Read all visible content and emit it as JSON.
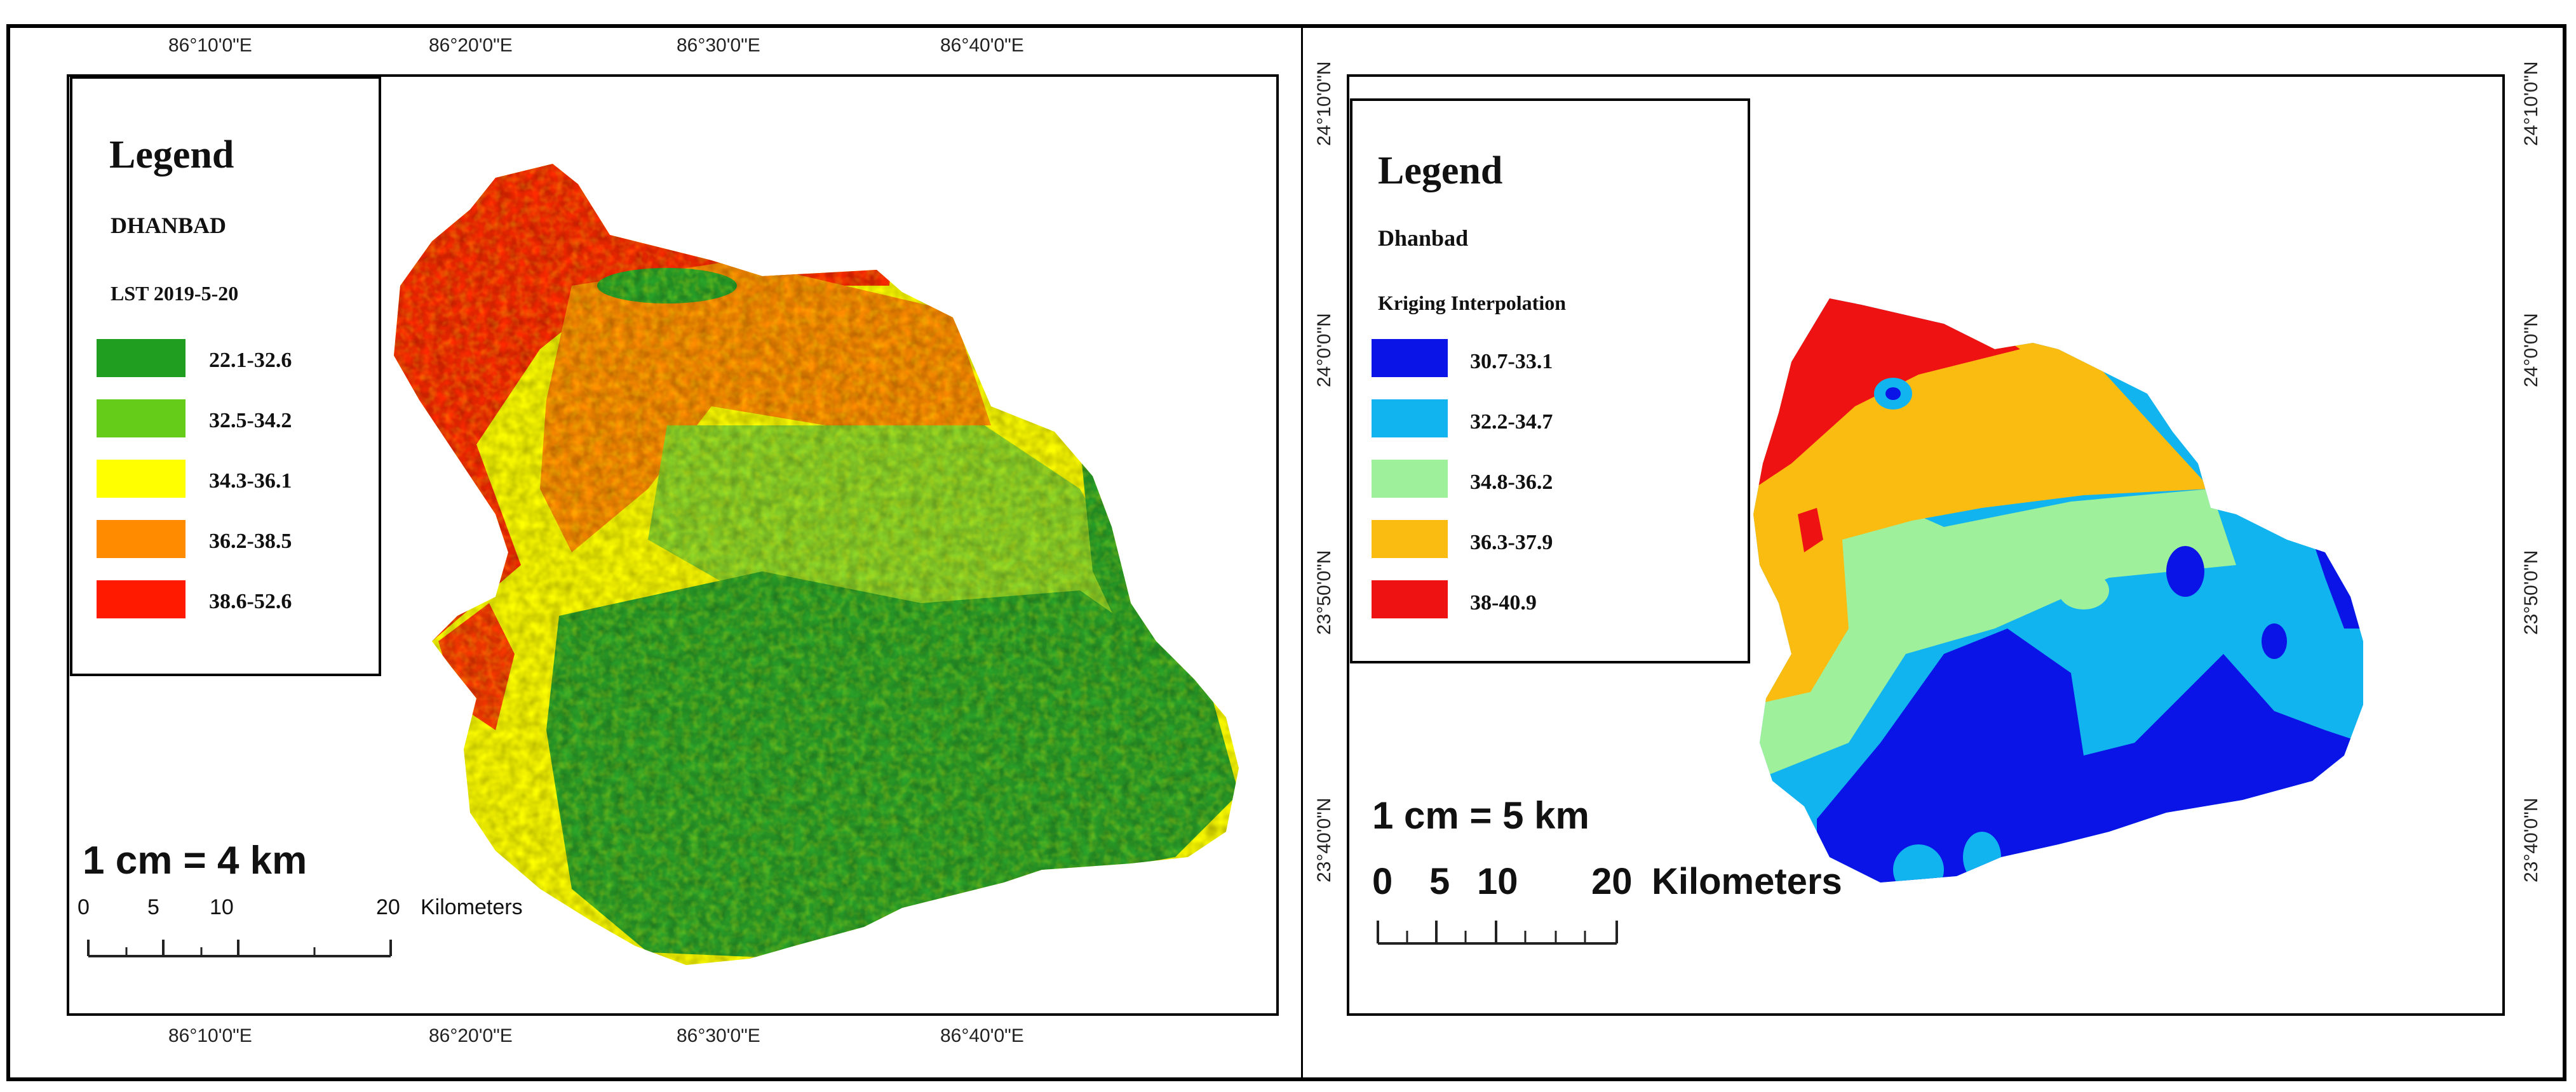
{
  "left_map": {
    "legend_title": "Legend",
    "region": "DHANBAD",
    "layer": "LST 2019-5-20",
    "classes": [
      {
        "label": "22.1-32.6",
        "color": "#1f9e1f"
      },
      {
        "label": "32.5-34.2",
        "color": "#66cc1a"
      },
      {
        "label": "34.3-36.1",
        "color": "#ffff00"
      },
      {
        "label": "36.2-38.5",
        "color": "#ff8c00"
      },
      {
        "label": "38.6-52.6",
        "color": "#ff1a00"
      }
    ],
    "top_ticks": [
      "86°10'0\"E",
      "86°20'0\"E",
      "86°30'0\"E",
      "86°40'0\"E"
    ],
    "bottom_ticks": [
      "86°10'0\"E",
      "86°20'0\"E",
      "86°30'0\"E",
      "86°40'0\"E"
    ],
    "scale_ratio": "1 cm = 4 km",
    "scale_ticks": [
      "0",
      "5",
      "10",
      "20"
    ],
    "scale_unit": "Kilometers"
  },
  "right_map": {
    "legend_title": "Legend",
    "region": "Dhanbad",
    "layer": "Kriging Interpolation",
    "classes": [
      {
        "label": "30.7-33.1",
        "color": "#0a14e6"
      },
      {
        "label": "32.2-34.7",
        "color": "#12b4f0"
      },
      {
        "label": "34.8-36.2",
        "color": "#9ef09a"
      },
      {
        "label": "36.3-37.9",
        "color": "#fbbc12"
      },
      {
        "label": "38-40.9",
        "color": "#ee1212"
      }
    ],
    "left_ticks": [
      "24°10'0\"N",
      "24°0'0\"N",
      "23°50'0\"N",
      "23°40'0\"N"
    ],
    "right_ticks": [
      "24°10'0\"N",
      "24°0'0\"N",
      "23°50'0\"N",
      "23°40'0\"N"
    ],
    "scale_ratio": "1 cm = 5 km",
    "scale_ticks": [
      "0",
      "5",
      "10",
      "20"
    ],
    "scale_unit": "Kilometers"
  }
}
